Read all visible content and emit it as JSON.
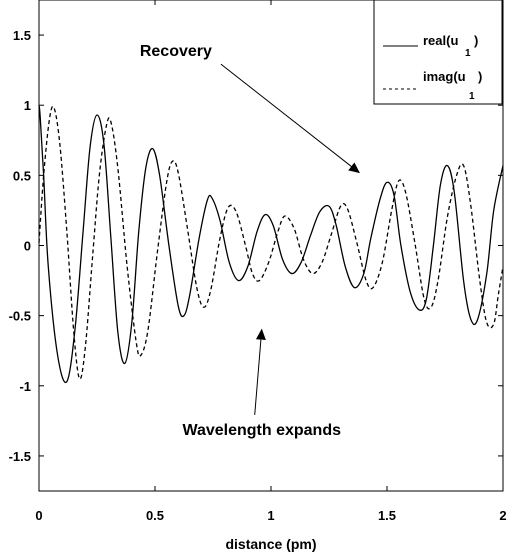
{
  "chart_data": {
    "type": "line",
    "title": "",
    "xlabel": "distance (pm)",
    "ylabel": "",
    "xlim": [
      0,
      2
    ],
    "ylim": [
      -1.75,
      1.75
    ],
    "grid": false,
    "legend_position": "top-right",
    "x_ticks": [
      {
        "value": 0,
        "label": "0"
      },
      {
        "value": 0.5,
        "label": "0.5"
      },
      {
        "value": 1,
        "label": "1"
      },
      {
        "value": 1.5,
        "label": "1.5"
      },
      {
        "value": 2,
        "label": "2"
      }
    ],
    "y_ticks": [
      {
        "value": -1.5,
        "label": "-1.5"
      },
      {
        "value": -1,
        "label": "-1"
      },
      {
        "value": -0.5,
        "label": "-0.5"
      },
      {
        "value": 0,
        "label": "0"
      },
      {
        "value": 0.5,
        "label": "0.5"
      },
      {
        "value": 1,
        "label": "1"
      },
      {
        "value": 1.5,
        "label": "1.5"
      }
    ],
    "series": [
      {
        "name": "real(u1)",
        "label_main": "real(u",
        "label_sub": "1",
        "label_close": ")",
        "style": "solid",
        "color": "#000000",
        "points": [
          [
            0,
            1.0
          ],
          [
            0.005,
            0.92
          ],
          [
            0.02,
            0.5
          ],
          [
            0.04,
            -0.15
          ],
          [
            0.08,
            -0.78
          ],
          [
            0.12,
            -0.97
          ],
          [
            0.155,
            -0.6
          ],
          [
            0.19,
            0.1
          ],
          [
            0.22,
            0.7
          ],
          [
            0.25,
            0.93
          ],
          [
            0.28,
            0.72
          ],
          [
            0.31,
            0.05
          ],
          [
            0.34,
            -0.62
          ],
          [
            0.37,
            -0.84
          ],
          [
            0.4,
            -0.55
          ],
          [
            0.43,
            0.1
          ],
          [
            0.46,
            0.55
          ],
          [
            0.49,
            0.69
          ],
          [
            0.52,
            0.5
          ],
          [
            0.56,
            0.0
          ],
          [
            0.6,
            -0.43
          ],
          [
            0.625,
            -0.5
          ],
          [
            0.65,
            -0.35
          ],
          [
            0.69,
            0.05
          ],
          [
            0.725,
            0.32
          ],
          [
            0.745,
            0.34
          ],
          [
            0.78,
            0.18
          ],
          [
            0.82,
            -0.12
          ],
          [
            0.86,
            -0.25
          ],
          [
            0.9,
            -0.15
          ],
          [
            0.94,
            0.1
          ],
          [
            0.975,
            0.22
          ],
          [
            1.01,
            0.14
          ],
          [
            1.05,
            -0.1
          ],
          [
            1.09,
            -0.2
          ],
          [
            1.13,
            -0.12
          ],
          [
            1.17,
            0.07
          ],
          [
            1.21,
            0.24
          ],
          [
            1.25,
            0.28
          ],
          [
            1.28,
            0.15
          ],
          [
            1.32,
            -0.15
          ],
          [
            1.36,
            -0.3
          ],
          [
            1.4,
            -0.2
          ],
          [
            1.43,
            0.05
          ],
          [
            1.47,
            0.33
          ],
          [
            1.5,
            0.45
          ],
          [
            1.53,
            0.36
          ],
          [
            1.56,
            0.0
          ],
          [
            1.6,
            -0.33
          ],
          [
            1.64,
            -0.46
          ],
          [
            1.67,
            -0.38
          ],
          [
            1.7,
            0.0
          ],
          [
            1.73,
            0.43
          ],
          [
            1.76,
            0.57
          ],
          [
            1.79,
            0.38
          ],
          [
            1.83,
            -0.25
          ],
          [
            1.86,
            -0.52
          ],
          [
            1.89,
            -0.53
          ],
          [
            1.93,
            -0.2
          ],
          [
            1.96,
            0.25
          ],
          [
            2.0,
            0.57
          ]
        ]
      },
      {
        "name": "imag(u1)",
        "label_main": "imag(u",
        "label_sub": "1",
        "label_close": ")",
        "style": "dashed",
        "color": "#000000",
        "points": [
          [
            0,
            0.02
          ],
          [
            0.02,
            0.5
          ],
          [
            0.045,
            0.9
          ],
          [
            0.065,
            0.98
          ],
          [
            0.09,
            0.72
          ],
          [
            0.12,
            0.1
          ],
          [
            0.15,
            -0.62
          ],
          [
            0.175,
            -0.95
          ],
          [
            0.2,
            -0.72
          ],
          [
            0.23,
            -0.1
          ],
          [
            0.26,
            0.5
          ],
          [
            0.29,
            0.85
          ],
          [
            0.31,
            0.88
          ],
          [
            0.34,
            0.55
          ],
          [
            0.38,
            -0.15
          ],
          [
            0.42,
            -0.7
          ],
          [
            0.44,
            -0.78
          ],
          [
            0.47,
            -0.6
          ],
          [
            0.51,
            -0.05
          ],
          [
            0.55,
            0.45
          ],
          [
            0.575,
            0.6
          ],
          [
            0.6,
            0.52
          ],
          [
            0.64,
            0.12
          ],
          [
            0.68,
            -0.3
          ],
          [
            0.71,
            -0.44
          ],
          [
            0.74,
            -0.32
          ],
          [
            0.78,
            0.05
          ],
          [
            0.815,
            0.27
          ],
          [
            0.85,
            0.24
          ],
          [
            0.89,
            0.0
          ],
          [
            0.92,
            -0.2
          ],
          [
            0.95,
            -0.25
          ],
          [
            0.99,
            -0.12
          ],
          [
            1.03,
            0.1
          ],
          [
            1.06,
            0.21
          ],
          [
            1.1,
            0.12
          ],
          [
            1.14,
            -0.1
          ],
          [
            1.18,
            -0.2
          ],
          [
            1.22,
            -0.12
          ],
          [
            1.26,
            0.08
          ],
          [
            1.3,
            0.28
          ],
          [
            1.33,
            0.26
          ],
          [
            1.37,
            0.02
          ],
          [
            1.41,
            -0.25
          ],
          [
            1.44,
            -0.3
          ],
          [
            1.48,
            -0.12
          ],
          [
            1.52,
            0.25
          ],
          [
            1.55,
            0.46
          ],
          [
            1.58,
            0.38
          ],
          [
            1.62,
            0.02
          ],
          [
            1.66,
            -0.38
          ],
          [
            1.69,
            -0.44
          ],
          [
            1.72,
            -0.25
          ],
          [
            1.76,
            0.2
          ],
          [
            1.8,
            0.5
          ],
          [
            1.83,
            0.57
          ],
          [
            1.86,
            0.3
          ],
          [
            1.9,
            -0.25
          ],
          [
            1.93,
            -0.55
          ],
          [
            1.96,
            -0.56
          ],
          [
            1.98,
            -0.35
          ],
          [
            2.0,
            -0.15
          ]
        ]
      }
    ],
    "annotations": [
      {
        "text": "Recovery",
        "x": 0.59,
        "y": 1.35,
        "arrow_to": [
          1.38,
          0.52
        ]
      },
      {
        "text": "Wavelength expands",
        "x": 0.96,
        "y": -1.35,
        "arrow_to": [
          0.96,
          -0.6
        ]
      }
    ]
  }
}
